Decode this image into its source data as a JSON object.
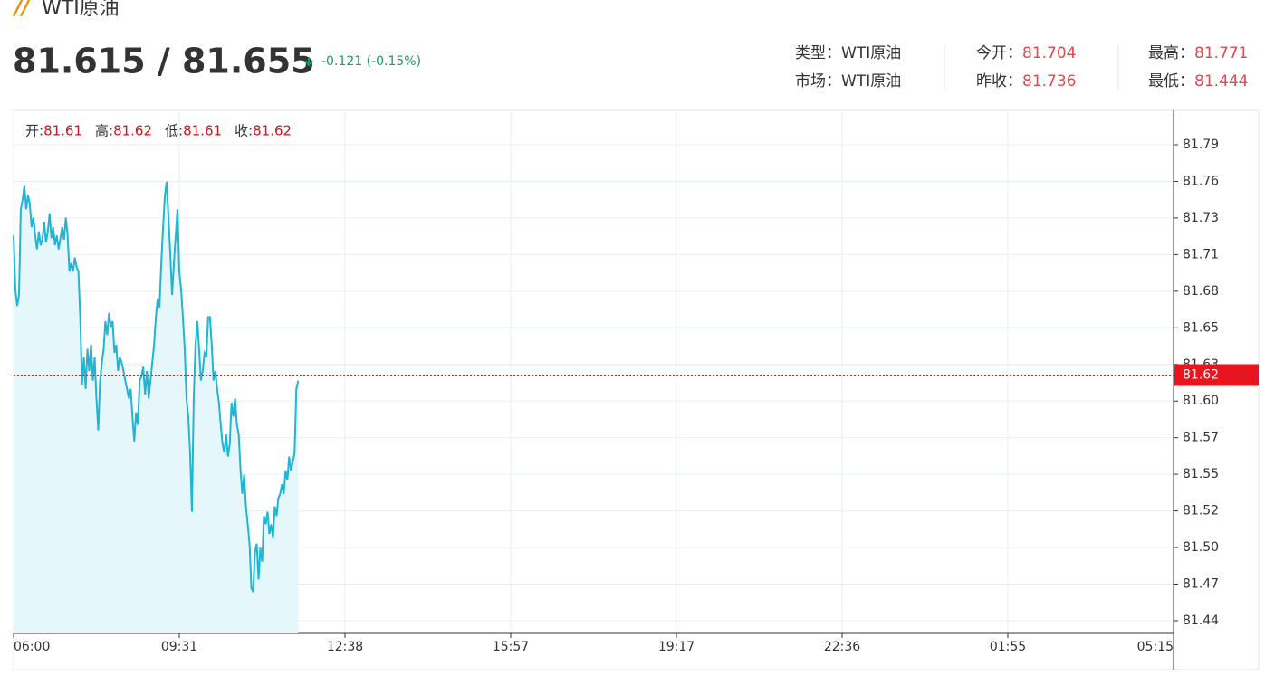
{
  "header": {
    "title": "WTI原油",
    "price": "81.615 / 81.655",
    "change": "-0.121 (-0.15%)",
    "info": [
      [
        {
          "label": "类型：",
          "value": "WTI原油"
        },
        {
          "label": "今开：",
          "value": "81.704"
        },
        {
          "label": "最高：",
          "value": "81.771"
        }
      ],
      [
        {
          "label": "市场：",
          "value": "WTI原油"
        },
        {
          "label": "昨收：",
          "value": "81.736"
        },
        {
          "label": "最低：",
          "value": "81.444"
        }
      ]
    ]
  },
  "chart_data": {
    "type": "line",
    "color": "#1fb5d4",
    "fill_color": "#e6f7fb",
    "grid": true,
    "ohlc": [
      {
        "label": "开:",
        "value": 81.61
      },
      {
        "label": "高:",
        "value": 81.62
      },
      {
        "label": "低:",
        "value": 81.61
      },
      {
        "label": "收:",
        "value": 81.62
      }
    ],
    "last": 81.62,
    "xlim": [
      0,
      644
    ],
    "xticks": [
      {
        "value": 0,
        "label": "06:00"
      },
      {
        "value": 92,
        "label": "09:31"
      },
      {
        "value": 184,
        "label": "12:38"
      },
      {
        "value": 276,
        "label": "15:57"
      },
      {
        "value": 368,
        "label": "19:17"
      },
      {
        "value": 460,
        "label": "22:36"
      },
      {
        "value": 552,
        "label": "01:55"
      },
      {
        "value": 644,
        "label": "05:15"
      }
    ],
    "ylim": [
      81.433,
      81.8116
    ],
    "yticks": [
      {
        "value": 81.4422,
        "label": "81.44"
      },
      {
        "value": 81.4687,
        "label": "81.47"
      },
      {
        "value": 81.4952,
        "label": "81.50"
      },
      {
        "value": 81.5217,
        "label": "81.52"
      },
      {
        "value": 81.5482,
        "label": "81.55"
      },
      {
        "value": 81.5747,
        "label": "81.57"
      },
      {
        "value": 81.6012,
        "label": "81.60"
      },
      {
        "value": 81.6277,
        "label": "81.63"
      },
      {
        "value": 81.6542,
        "label": "81.65"
      },
      {
        "value": 81.6807,
        "label": "81.68"
      },
      {
        "value": 81.7072,
        "label": "81.71"
      },
      {
        "value": 81.7337,
        "label": "81.73"
      },
      {
        "value": 81.7602,
        "label": "81.76"
      },
      {
        "value": 81.7867,
        "label": "81.79"
      }
    ],
    "x": [
      0,
      1,
      2,
      3,
      4,
      5,
      6,
      7,
      8,
      9,
      10,
      11,
      12,
      13,
      14,
      15,
      16,
      17,
      18,
      19,
      20,
      21,
      22,
      23,
      24,
      25,
      26,
      27,
      28,
      29,
      30,
      31,
      32,
      33,
      34,
      35,
      36,
      37,
      38,
      39,
      40,
      41,
      42,
      43,
      44,
      45,
      46,
      47,
      48,
      49,
      50,
      51,
      52,
      53,
      54,
      55,
      56,
      57,
      58,
      59,
      60,
      61,
      62,
      63,
      64,
      65,
      66,
      67,
      68,
      69,
      70,
      71,
      72,
      73,
      74,
      75,
      76,
      77,
      78,
      79,
      80,
      81,
      82,
      83,
      84,
      85,
      86,
      87,
      88,
      89,
      90,
      91,
      92,
      93,
      94,
      95,
      96,
      97,
      98,
      99,
      100,
      101,
      102,
      103,
      104,
      105,
      106,
      107,
      108,
      109,
      110,
      111,
      112,
      113,
      114,
      115,
      116,
      117,
      118,
      119,
      120,
      121,
      122,
      123,
      124,
      125,
      126,
      127,
      128,
      129,
      130,
      131,
      132,
      133,
      134,
      135,
      136,
      137,
      138,
      139,
      140,
      141,
      142,
      143,
      144,
      145,
      146,
      147,
      148,
      149,
      150,
      151,
      152,
      153,
      154,
      155,
      156,
      157,
      158
    ],
    "values": [
      81.721,
      81.682,
      81.67,
      81.678,
      81.74,
      81.747,
      81.757,
      81.74,
      81.75,
      81.744,
      81.727,
      81.734,
      81.721,
      81.711,
      81.724,
      81.714,
      81.718,
      81.731,
      81.716,
      81.724,
      81.737,
      81.719,
      81.727,
      81.714,
      81.721,
      81.711,
      81.719,
      81.727,
      81.718,
      81.734,
      81.721,
      81.695,
      81.701,
      81.695,
      81.705,
      81.698,
      81.695,
      81.662,
      81.613,
      81.633,
      81.61,
      81.639,
      81.623,
      81.642,
      81.616,
      81.633,
      81.603,
      81.58,
      81.616,
      81.629,
      81.639,
      81.659,
      81.649,
      81.665,
      81.655,
      81.659,
      81.636,
      81.642,
      81.623,
      81.633,
      81.629,
      81.623,
      81.616,
      81.61,
      81.603,
      81.61,
      81.59,
      81.572,
      81.593,
      81.584,
      81.616,
      81.619,
      81.626,
      81.606,
      81.623,
      81.603,
      81.616,
      81.629,
      81.642,
      81.662,
      81.675,
      81.669,
      81.701,
      81.727,
      81.75,
      81.76,
      81.734,
      81.708,
      81.678,
      81.701,
      81.721,
      81.74,
      81.695,
      81.682,
      81.662,
      81.639,
      81.603,
      81.59,
      81.564,
      81.521,
      81.603,
      81.642,
      81.659,
      81.639,
      81.616,
      81.623,
      81.636,
      81.633,
      81.662,
      81.662,
      81.642,
      81.616,
      81.623,
      81.61,
      81.6,
      81.584,
      81.57,
      81.564,
      81.577,
      81.561,
      81.57,
      81.6,
      81.59,
      81.603,
      81.584,
      81.577,
      81.551,
      81.534,
      81.548,
      81.525,
      81.512,
      81.498,
      81.466,
      81.463,
      81.492,
      81.498,
      81.472,
      81.495,
      81.485,
      81.518,
      81.512,
      81.521,
      81.505,
      81.512,
      81.502,
      81.525,
      81.518,
      81.531,
      81.534,
      81.541,
      81.534,
      81.551,
      81.544,
      81.561,
      81.551,
      81.557,
      81.564,
      81.61,
      81.616
    ]
  }
}
